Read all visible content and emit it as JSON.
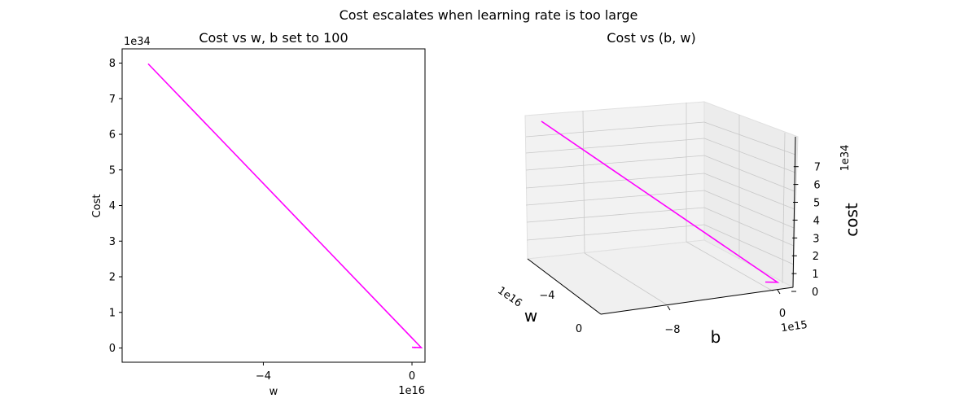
{
  "suptitle": "Cost escalates when learning rate is too large",
  "chart_data": [
    {
      "type": "line",
      "title": "Cost vs w, b set to 100",
      "xlabel": "w",
      "ylabel": "Cost",
      "x_scale_label": "1e16",
      "y_scale_label": "1e34",
      "xlim": [
        -7.8,
        0.35
      ],
      "ylim": [
        -0.4,
        8.4
      ],
      "xticks": [
        {
          "v": -4,
          "label": "−4"
        },
        {
          "v": 0,
          "label": "0"
        }
      ],
      "yticks": [
        0,
        1,
        2,
        3,
        4,
        5,
        6,
        7,
        8
      ],
      "series": [
        {
          "color": "#ff00ff",
          "x": [
            -7.1,
            0.25,
            0.0,
            0.1,
            0.0
          ],
          "y": [
            7.98,
            0.01,
            0.02,
            0.01,
            0.02
          ]
        }
      ]
    },
    {
      "type": "line3d",
      "title": "Cost vs (b, w)",
      "xlabel": "w",
      "ylabel": "b",
      "zlabel": "cost",
      "x_scale_label": "1e16",
      "y_scale_label": "1e15",
      "z_scale_label": "1e34",
      "xticks": [
        {
          "v": -4,
          "label": "−4"
        },
        {
          "v": 0,
          "label": "0"
        }
      ],
      "yticks": [
        {
          "v": -8,
          "label": "−8"
        },
        {
          "v": 0,
          "label": "0"
        }
      ],
      "zticks": [
        0,
        1,
        2,
        3,
        4,
        5,
        6,
        7
      ],
      "series": [
        {
          "color": "#ff00ff",
          "w": [
            -7.1,
            0.25,
            0.0
          ],
          "b": [
            -0.1,
            0.0,
            0.0
          ],
          "cost": [
            7.98,
            0.01,
            0.02
          ]
        }
      ]
    }
  ]
}
